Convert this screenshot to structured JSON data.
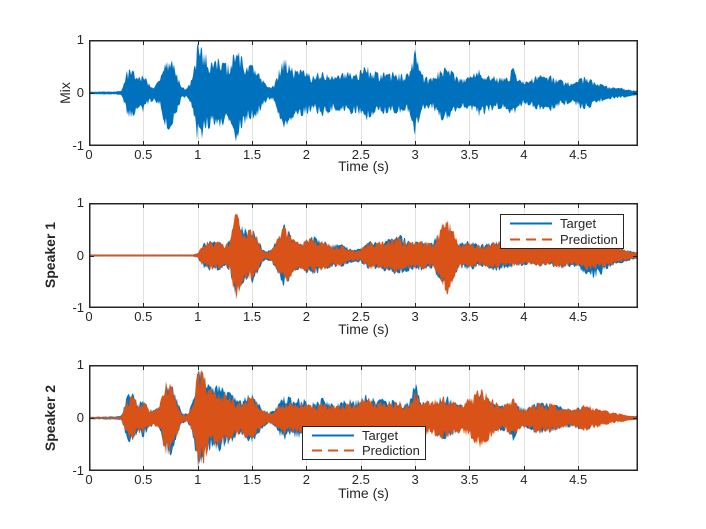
{
  "colors": {
    "target": "#0072BD",
    "prediction": "#D95319",
    "axis": "#262626",
    "grid": "#e2e2e2",
    "text": "#262626",
    "background": "#ffffff"
  },
  "chart_data": [
    {
      "type": "area",
      "kind": "audio-waveform",
      "name": "mix",
      "ylabel": "Mix",
      "xlabel": "Time (s)",
      "xlim": [
        0,
        5.05
      ],
      "ylim": [
        -1,
        1
      ],
      "grid": "x-only",
      "xticks": [
        0,
        0.5,
        1,
        1.5,
        2,
        2.5,
        3,
        3.5,
        4,
        4.5
      ],
      "xtick_labels": [
        "0",
        "0.5",
        "1",
        "1.5",
        "2",
        "2.5",
        "3",
        "3.5",
        "4",
        "4.5"
      ],
      "yticks": [
        -1,
        0,
        1
      ],
      "ytick_labels": [
        "-1",
        "0",
        "1"
      ],
      "sample_dt": 0.05,
      "legend": null,
      "series": [
        {
          "name": "Mix",
          "color_key": "target",
          "envelope": [
            0.02,
            0.03,
            0.03,
            0.03,
            0.03,
            0.03,
            0.05,
            0.45,
            0.5,
            0.3,
            0.38,
            0.2,
            0.15,
            0.25,
            0.65,
            0.75,
            0.45,
            0.12,
            0.08,
            0.3,
            1.0,
            0.85,
            0.7,
            0.65,
            0.7,
            0.6,
            0.55,
            0.95,
            0.75,
            0.55,
            0.55,
            0.45,
            0.25,
            0.12,
            0.15,
            0.5,
            0.7,
            0.55,
            0.45,
            0.45,
            0.42,
            0.35,
            0.4,
            0.45,
            0.4,
            0.35,
            0.35,
            0.4,
            0.42,
            0.38,
            0.45,
            0.55,
            0.45,
            0.4,
            0.42,
            0.38,
            0.42,
            0.4,
            0.35,
            0.4,
            0.85,
            0.4,
            0.32,
            0.3,
            0.4,
            0.55,
            0.5,
            0.4,
            0.32,
            0.3,
            0.32,
            0.4,
            0.48,
            0.4,
            0.35,
            0.32,
            0.3,
            0.32,
            0.5,
            0.3,
            0.22,
            0.25,
            0.32,
            0.35,
            0.3,
            0.35,
            0.28,
            0.25,
            0.22,
            0.2,
            0.28,
            0.32,
            0.3,
            0.22,
            0.18,
            0.15,
            0.12,
            0.1,
            0.1,
            0.08,
            0.05
          ]
        }
      ]
    },
    {
      "type": "area",
      "kind": "audio-waveform",
      "name": "speaker1",
      "ylabel": "Speaker 1",
      "xlabel": "Time (s)",
      "xlim": [
        0,
        5.05
      ],
      "ylim": [
        -1,
        1
      ],
      "grid": "x-only",
      "xticks": [
        0,
        0.5,
        1,
        1.5,
        2,
        2.5,
        3,
        3.5,
        4,
        4.5
      ],
      "xtick_labels": [
        "0",
        "0.5",
        "1",
        "1.5",
        "2",
        "2.5",
        "3",
        "3.5",
        "4",
        "4.5"
      ],
      "yticks": [
        -1,
        0,
        1
      ],
      "ytick_labels": [
        "-1",
        "0",
        "1"
      ],
      "sample_dt": 0.05,
      "legend": {
        "position": "northeast",
        "items": [
          {
            "label": "Target",
            "style": "solid",
            "color_key": "target"
          },
          {
            "label": "Prediction",
            "style": "dashed",
            "color_key": "prediction"
          }
        ]
      },
      "series": [
        {
          "name": "Target",
          "color_key": "target",
          "envelope": [
            0.02,
            0.02,
            0.02,
            0.02,
            0.02,
            0.02,
            0.02,
            0.02,
            0.02,
            0.02,
            0.02,
            0.02,
            0.02,
            0.02,
            0.02,
            0.02,
            0.02,
            0.02,
            0.02,
            0.02,
            0.05,
            0.25,
            0.3,
            0.28,
            0.3,
            0.2,
            0.35,
            0.85,
            0.6,
            0.5,
            0.55,
            0.35,
            0.12,
            0.1,
            0.2,
            0.45,
            0.65,
            0.45,
            0.3,
            0.28,
            0.35,
            0.4,
            0.35,
            0.3,
            0.28,
            0.22,
            0.25,
            0.2,
            0.15,
            0.12,
            0.15,
            0.25,
            0.3,
            0.28,
            0.3,
            0.32,
            0.38,
            0.42,
            0.35,
            0.3,
            0.28,
            0.3,
            0.28,
            0.25,
            0.4,
            0.55,
            0.55,
            0.45,
            0.25,
            0.28,
            0.32,
            0.25,
            0.22,
            0.25,
            0.28,
            0.3,
            0.28,
            0.25,
            0.25,
            0.22,
            0.2,
            0.18,
            0.2,
            0.22,
            0.2,
            0.22,
            0.25,
            0.28,
            0.25,
            0.22,
            0.25,
            0.35,
            0.42,
            0.45,
            0.4,
            0.3,
            0.22,
            0.18,
            0.15,
            0.12,
            0.08
          ]
        },
        {
          "name": "Prediction",
          "color_key": "prediction",
          "envelope": [
            0.02,
            0.02,
            0.02,
            0.02,
            0.02,
            0.02,
            0.02,
            0.02,
            0.02,
            0.02,
            0.02,
            0.02,
            0.02,
            0.02,
            0.02,
            0.02,
            0.02,
            0.02,
            0.02,
            0.02,
            0.04,
            0.24,
            0.28,
            0.27,
            0.28,
            0.19,
            0.33,
            0.95,
            0.55,
            0.48,
            0.52,
            0.33,
            0.1,
            0.09,
            0.18,
            0.42,
            0.6,
            0.42,
            0.28,
            0.26,
            0.33,
            0.38,
            0.32,
            0.28,
            0.26,
            0.2,
            0.22,
            0.18,
            0.13,
            0.1,
            0.13,
            0.22,
            0.28,
            0.26,
            0.28,
            0.3,
            0.34,
            0.36,
            0.3,
            0.27,
            0.26,
            0.28,
            0.26,
            0.23,
            0.38,
            0.6,
            0.8,
            0.5,
            0.22,
            0.24,
            0.26,
            0.22,
            0.2,
            0.23,
            0.26,
            0.28,
            0.26,
            0.23,
            0.22,
            0.2,
            0.18,
            0.16,
            0.18,
            0.2,
            0.18,
            0.2,
            0.23,
            0.26,
            0.23,
            0.2,
            0.22,
            0.28,
            0.3,
            0.28,
            0.26,
            0.24,
            0.2,
            0.16,
            0.13,
            0.1,
            0.07
          ]
        }
      ]
    },
    {
      "type": "area",
      "kind": "audio-waveform",
      "name": "speaker2",
      "ylabel": "Speaker 2",
      "xlabel": "Time (s)",
      "xlim": [
        0,
        5.05
      ],
      "ylim": [
        -1,
        1
      ],
      "grid": "x-only",
      "xticks": [
        0,
        0.5,
        1,
        1.5,
        2,
        2.5,
        3,
        3.5,
        4,
        4.5
      ],
      "xtick_labels": [
        "0",
        "0.5",
        "1",
        "1.5",
        "2",
        "2.5",
        "3",
        "3.5",
        "4",
        "4.5"
      ],
      "yticks": [
        -1,
        0,
        1
      ],
      "ytick_labels": [
        "-1",
        "0",
        "1"
      ],
      "sample_dt": 0.05,
      "legend": {
        "position": "south",
        "items": [
          {
            "label": "Target",
            "style": "solid",
            "color_key": "target"
          },
          {
            "label": "Prediction",
            "style": "dashed",
            "color_key": "prediction"
          }
        ]
      },
      "series": [
        {
          "name": "Target",
          "color_key": "target",
          "envelope": [
            0.02,
            0.03,
            0.03,
            0.03,
            0.03,
            0.03,
            0.05,
            0.45,
            0.5,
            0.3,
            0.38,
            0.2,
            0.15,
            0.25,
            0.65,
            0.75,
            0.45,
            0.12,
            0.08,
            0.3,
            1.0,
            0.85,
            0.65,
            0.6,
            0.65,
            0.55,
            0.5,
            0.4,
            0.35,
            0.45,
            0.5,
            0.35,
            0.2,
            0.12,
            0.15,
            0.35,
            0.45,
            0.4,
            0.38,
            0.4,
            0.38,
            0.32,
            0.35,
            0.4,
            0.35,
            0.32,
            0.3,
            0.35,
            0.38,
            0.35,
            0.42,
            0.52,
            0.42,
            0.35,
            0.38,
            0.33,
            0.38,
            0.35,
            0.3,
            0.35,
            0.72,
            0.35,
            0.28,
            0.25,
            0.35,
            0.45,
            0.42,
            0.35,
            0.28,
            0.25,
            0.28,
            0.38,
            0.45,
            0.38,
            0.32,
            0.28,
            0.25,
            0.28,
            0.45,
            0.25,
            0.2,
            0.22,
            0.3,
            0.32,
            0.28,
            0.32,
            0.25,
            0.22,
            0.2,
            0.18,
            0.22,
            0.25,
            0.22,
            0.15,
            0.12,
            0.1,
            0.08,
            0.07,
            0.06,
            0.05,
            0.04
          ]
        },
        {
          "name": "Prediction",
          "color_key": "prediction",
          "envelope": [
            0.02,
            0.02,
            0.02,
            0.02,
            0.02,
            0.02,
            0.04,
            0.4,
            0.45,
            0.28,
            0.35,
            0.18,
            0.13,
            0.28,
            0.7,
            0.72,
            0.4,
            0.1,
            0.07,
            0.28,
            0.9,
            0.95,
            0.6,
            0.55,
            0.6,
            0.5,
            0.45,
            0.35,
            0.3,
            0.4,
            0.45,
            0.3,
            0.17,
            0.1,
            0.13,
            0.28,
            0.33,
            0.3,
            0.28,
            0.3,
            0.28,
            0.25,
            0.28,
            0.32,
            0.28,
            0.26,
            0.25,
            0.3,
            0.33,
            0.3,
            0.36,
            0.42,
            0.35,
            0.3,
            0.33,
            0.28,
            0.33,
            0.3,
            0.26,
            0.3,
            0.6,
            0.38,
            0.35,
            0.32,
            0.4,
            0.42,
            0.38,
            0.32,
            0.3,
            0.32,
            0.4,
            0.5,
            0.6,
            0.5,
            0.4,
            0.3,
            0.25,
            0.3,
            0.42,
            0.23,
            0.2,
            0.22,
            0.28,
            0.3,
            0.26,
            0.3,
            0.23,
            0.2,
            0.18,
            0.16,
            0.22,
            0.26,
            0.25,
            0.2,
            0.18,
            0.15,
            0.12,
            0.1,
            0.08,
            0.06,
            0.04
          ]
        }
      ]
    }
  ]
}
